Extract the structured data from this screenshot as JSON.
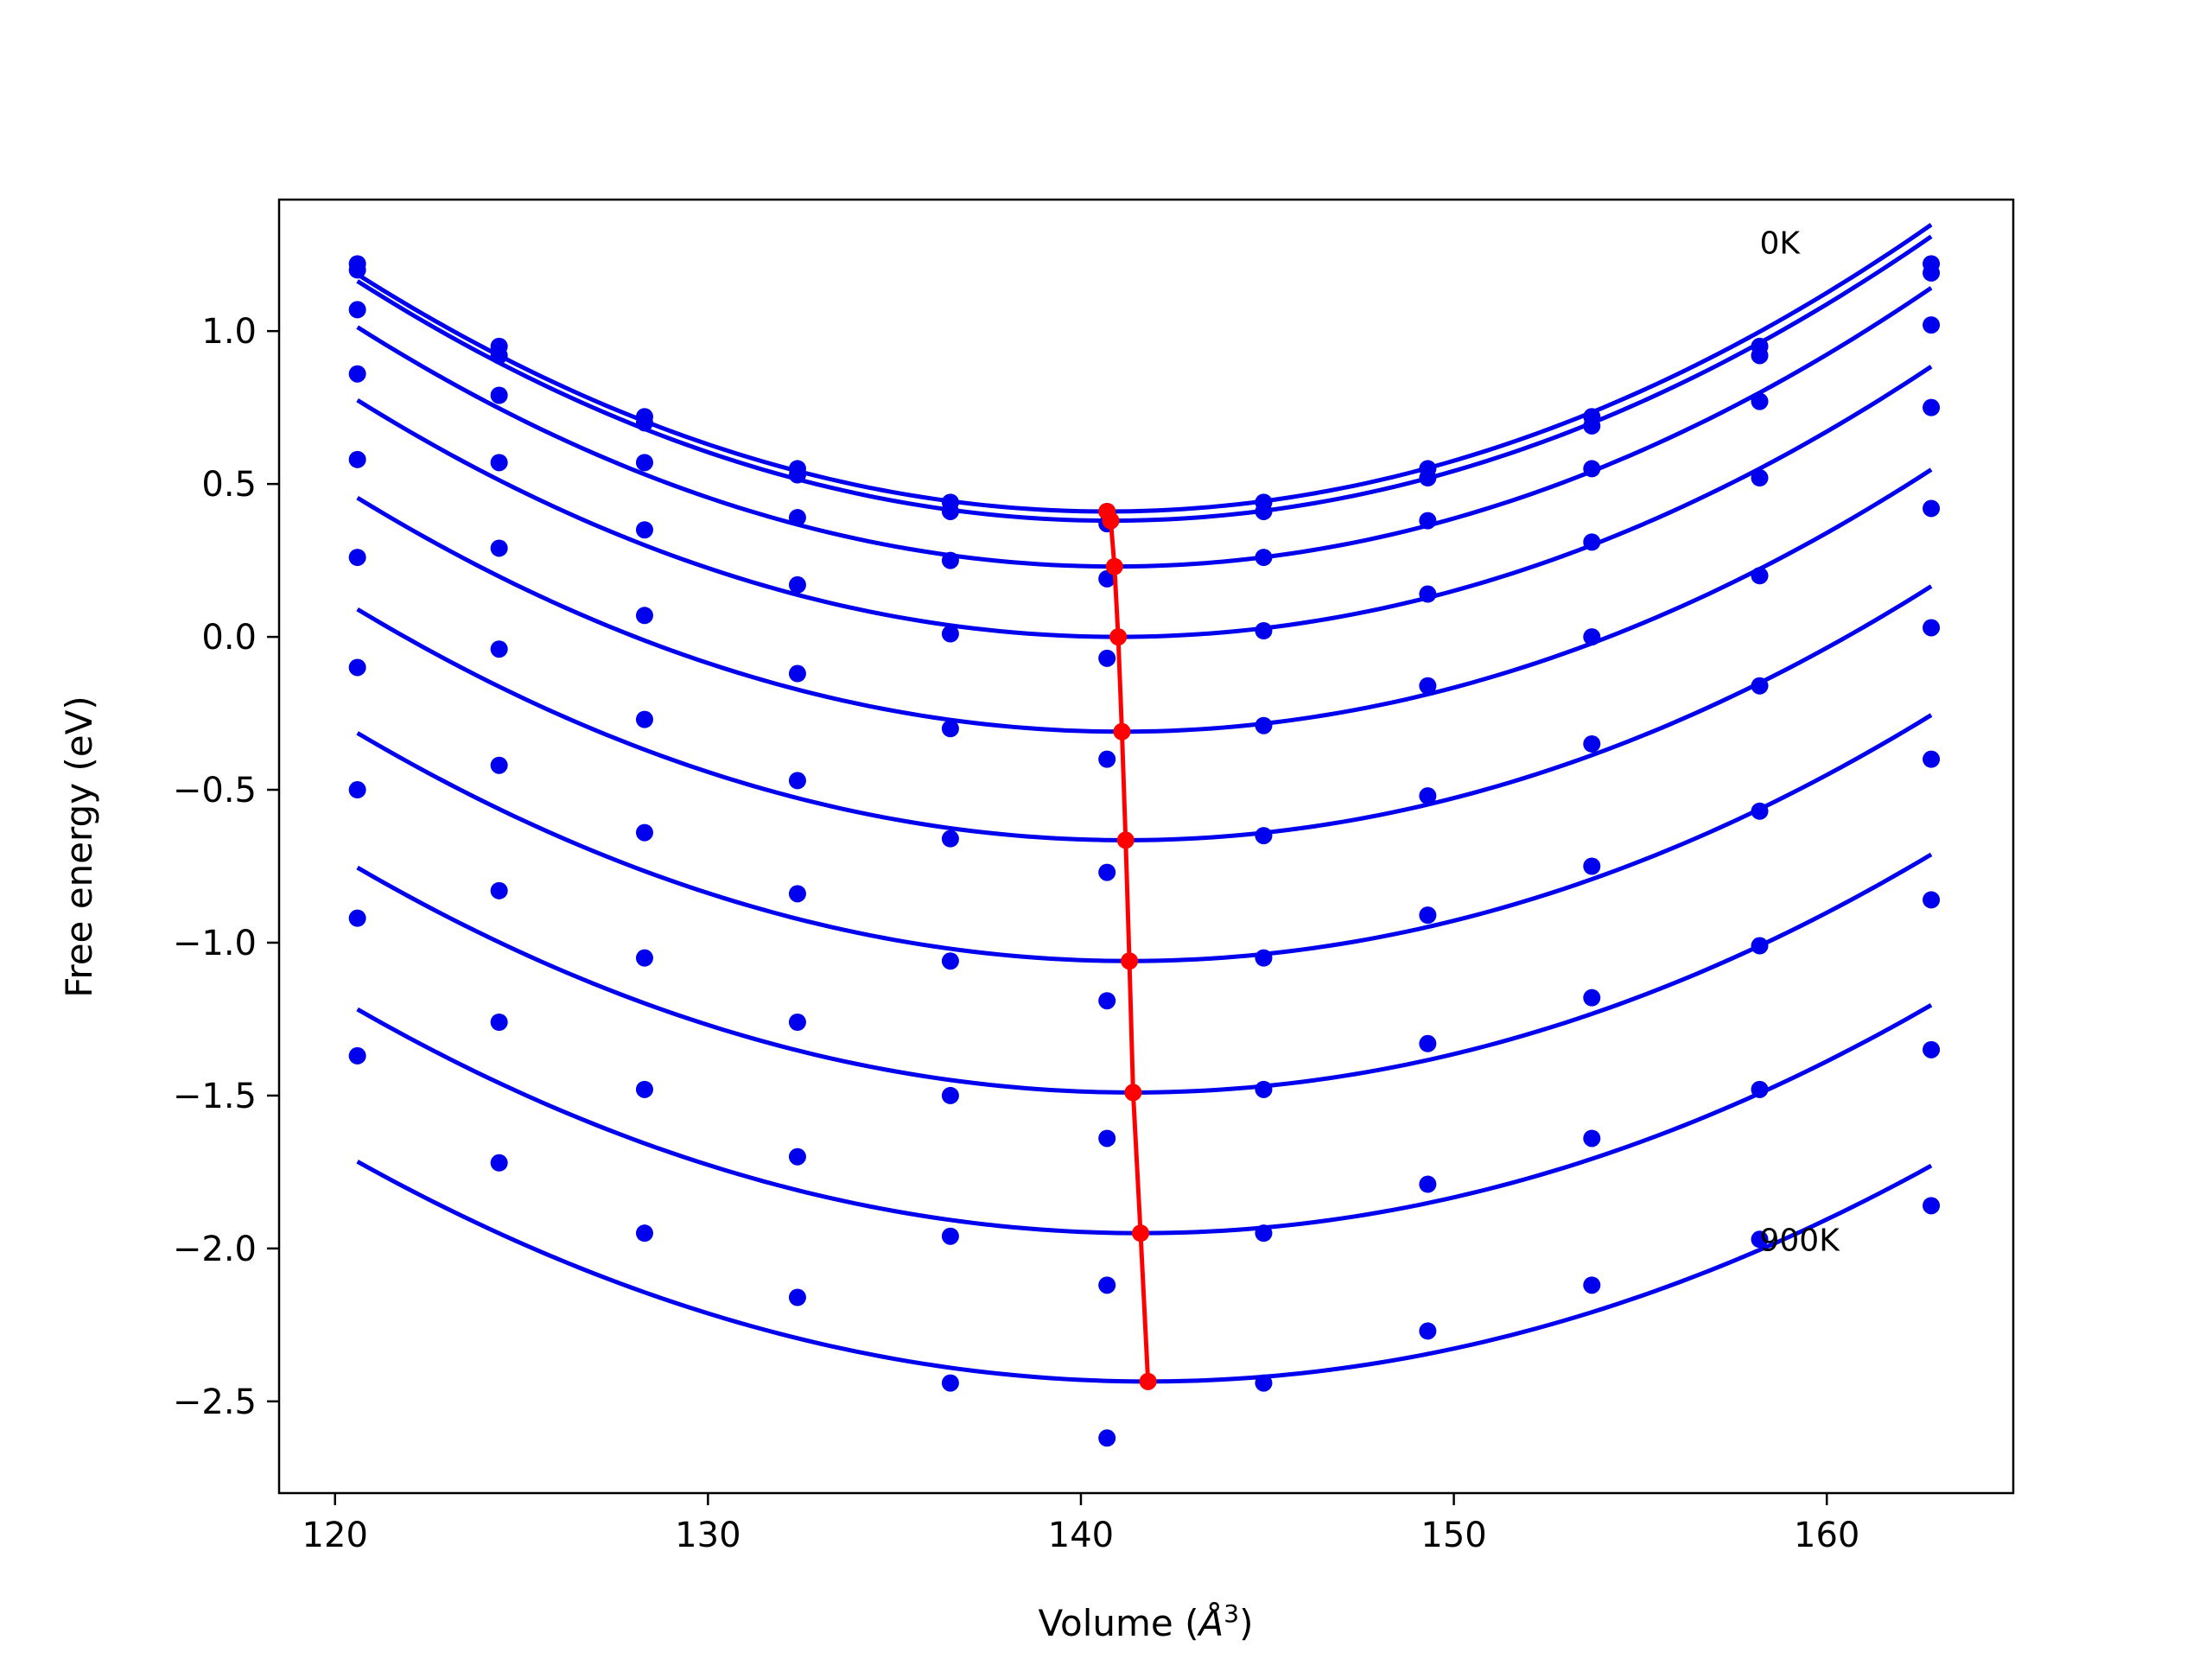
{
  "chart_data": {
    "type": "line",
    "xlabel_prefix": "Volume (",
    "xlabel_italic": "Å",
    "xlabel_sup": "3",
    "xlabel_suffix": ")",
    "ylabel": "Free energy (eV)",
    "xlim": [
      118.5,
      165
    ],
    "ylim": [
      -2.8,
      1.43
    ],
    "x_ticks": [
      120,
      130,
      140,
      150,
      160
    ],
    "x_tick_labels": [
      "120",
      "130",
      "140",
      "150",
      "160"
    ],
    "y_ticks": [
      1.0,
      0.5,
      0.0,
      -0.5,
      -1.0,
      -1.5,
      -2.0,
      -2.5
    ],
    "y_tick_labels": [
      "1.0",
      "0.5",
      "0.0",
      "−0.5",
      "−1.0",
      "−1.5",
      "−2.0",
      "−2.5"
    ],
    "grid": false,
    "annotations": [
      {
        "text": "0K",
        "x": 158.2,
        "y": 1.29
      },
      {
        "text": "900K",
        "x": 158.2,
        "y": -1.97
      }
    ],
    "colors": {
      "series": "#0000ee",
      "equilibrium": "#ff0000",
      "axes": "#000000"
    },
    "x_points": [
      120.6,
      124.4,
      128.3,
      132.4,
      136.5,
      140.7,
      144.9,
      149.3,
      153.7,
      158.2,
      162.8
    ],
    "fit_x_range": [
      120.6,
      162.8
    ],
    "series": [
      {
        "points": [
          1.22,
          0.95,
          0.72,
          0.55,
          0.44,
          0.41,
          0.44,
          0.55,
          0.72,
          0.95,
          1.22
        ],
        "fit": {
          "a": 0.00192,
          "v0": 140.7,
          "f0": 0.41
        }
      },
      {
        "points": [
          1.2,
          0.92,
          0.7,
          0.53,
          0.41,
          0.37,
          0.41,
          0.52,
          0.69,
          0.92,
          1.19
        ],
        "fit": {
          "a": 0.00192,
          "v0": 140.8,
          "f0": 0.38
        }
      },
      {
        "points": [
          1.07,
          0.79,
          0.57,
          0.39,
          0.25,
          0.19,
          0.26,
          0.38,
          0.55,
          0.77,
          1.02
        ],
        "fit": {
          "a": 0.0019,
          "v0": 140.9,
          "f0": 0.23
        }
      },
      {
        "points": [
          0.86,
          0.57,
          0.35,
          0.17,
          0.01,
          -0.07,
          0.02,
          0.14,
          0.31,
          0.52,
          0.75
        ],
        "fit": {
          "a": 0.00186,
          "v0": 141.0,
          "f0": 0.0
        }
      },
      {
        "points": [
          0.58,
          0.29,
          0.07,
          -0.12,
          -0.3,
          -0.4,
          -0.29,
          -0.16,
          0.0,
          0.2,
          0.42
        ],
        "fit": {
          "a": 0.00182,
          "v0": 141.1,
          "f0": -0.31
        }
      },
      {
        "points": [
          0.26,
          -0.04,
          -0.27,
          -0.47,
          -0.66,
          -0.77,
          -0.65,
          -0.52,
          -0.35,
          -0.16,
          0.03
        ],
        "fit": {
          "a": 0.00178,
          "v0": 141.2,
          "f0": -0.665
        }
      },
      {
        "points": [
          -0.1,
          -0.42,
          -0.64,
          -0.84,
          -1.06,
          -1.19,
          -1.05,
          -0.91,
          -0.75,
          -0.57,
          -0.4
        ],
        "fit": {
          "a": 0.00174,
          "v0": 141.3,
          "f0": -1.06
        }
      },
      {
        "points": [
          -0.5,
          -0.83,
          -1.05,
          -1.26,
          -1.5,
          -1.64,
          -1.48,
          -1.33,
          -1.18,
          -1.01,
          -0.86
        ],
        "fit": {
          "a": 0.0017,
          "v0": 141.4,
          "f0": -1.49
        }
      },
      {
        "points": [
          -0.92,
          -1.26,
          -1.48,
          -1.7,
          -1.96,
          -2.12,
          -1.95,
          -1.79,
          -1.64,
          -1.48,
          -1.35
        ],
        "fit": {
          "a": 0.00166,
          "v0": 141.6,
          "f0": -1.95
        }
      },
      {
        "points": [
          -1.37,
          -1.72,
          -1.95,
          -2.16,
          -2.44,
          -2.62,
          -2.44,
          -2.27,
          -2.12,
          -1.97,
          -1.86
        ],
        "fit": {
          "a": 0.0016,
          "v0": 141.8,
          "f0": -2.435
        }
      }
    ]
  }
}
